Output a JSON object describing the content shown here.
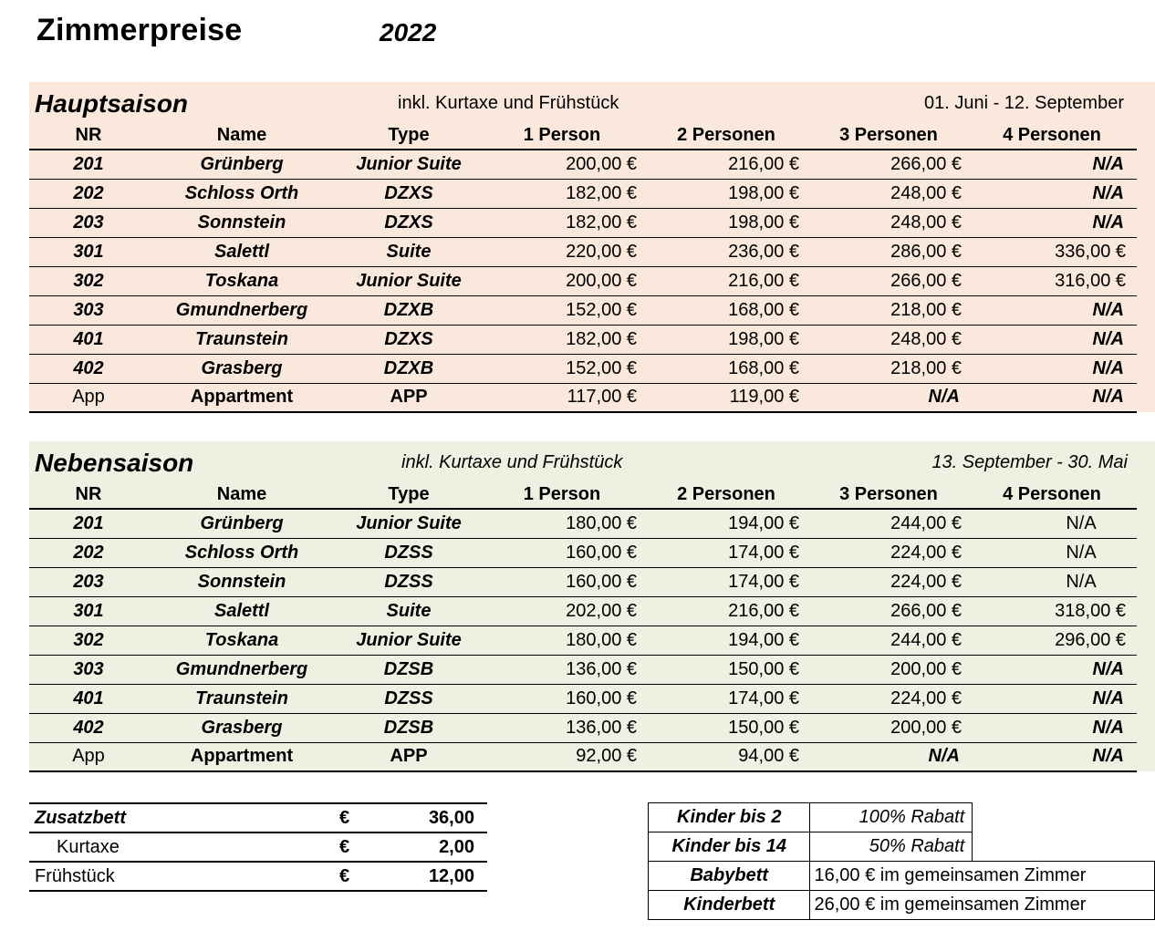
{
  "title": "Zimmerpreise",
  "year": "2022",
  "columns": [
    "NR",
    "Name",
    "Type",
    "1 Person",
    "2 Personen",
    "3 Personen",
    "4 Personen"
  ],
  "hauptsaison": {
    "name": "Hauptsaison",
    "note": "inkl. Kurtaxe und Frühstück",
    "dates": "01. Juni - 12. September",
    "bg_color": "#fbe8dc",
    "rows": [
      [
        "201",
        "Grünberg",
        "Junior Suite",
        "200,00 €",
        "216,00 €",
        "266,00 €",
        "N/A"
      ],
      [
        "202",
        "Schloss Orth",
        "DZXS",
        "182,00 €",
        "198,00 €",
        "248,00 €",
        "N/A"
      ],
      [
        "203",
        "Sonnstein",
        "DZXS",
        "182,00 €",
        "198,00 €",
        "248,00 €",
        "N/A"
      ],
      [
        "301",
        "Salettl",
        "Suite",
        "220,00 €",
        "236,00 €",
        "286,00 €",
        "336,00 €"
      ],
      [
        "302",
        "Toskana",
        "Junior Suite",
        "200,00 €",
        "216,00 €",
        "266,00 €",
        "316,00 €"
      ],
      [
        "303",
        "Gmundnerberg",
        "DZXB",
        "152,00 €",
        "168,00 €",
        "218,00 €",
        "N/A"
      ],
      [
        "401",
        "Traunstein",
        "DZXS",
        "182,00 €",
        "198,00 €",
        "248,00 €",
        "N/A"
      ],
      [
        "402",
        "Grasberg",
        "DZXB",
        "152,00 €",
        "168,00 €",
        "218,00 €",
        "N/A"
      ],
      [
        "App",
        "Appartment",
        "APP",
        "117,00 €",
        "119,00 €",
        "N/A",
        "N/A"
      ]
    ]
  },
  "nebensaison": {
    "name": "Nebensaison",
    "note": "inkl. Kurtaxe und Frühstück",
    "dates": "13. September - 30. Mai",
    "bg_color": "#edf1e2",
    "rows": [
      [
        "201",
        "Grünberg",
        "Junior Suite",
        "180,00 €",
        "194,00 €",
        "244,00 €",
        "N/A"
      ],
      [
        "202",
        "Schloss Orth",
        "DZSS",
        "160,00 €",
        "174,00 €",
        "224,00 €",
        "N/A"
      ],
      [
        "203",
        "Sonnstein",
        "DZSS",
        "160,00 €",
        "174,00 €",
        "224,00 €",
        "N/A"
      ],
      [
        "301",
        "Salettl",
        "Suite",
        "202,00 €",
        "216,00 €",
        "266,00 €",
        "318,00 €"
      ],
      [
        "302",
        "Toskana",
        "Junior Suite",
        "180,00 €",
        "194,00 €",
        "244,00 €",
        "296,00 €"
      ],
      [
        "303",
        "Gmundnerberg",
        "DZSB",
        "136,00 €",
        "150,00 €",
        "200,00 €",
        "N/A"
      ],
      [
        "401",
        "Traunstein",
        "DZSS",
        "160,00 €",
        "174,00 €",
        "224,00 €",
        "N/A"
      ],
      [
        "402",
        "Grasberg",
        "DZSB",
        "136,00 €",
        "150,00 €",
        "200,00 €",
        "N/A"
      ],
      [
        "App",
        "Appartment",
        "APP",
        "92,00 €",
        "94,00 €",
        "N/A",
        "N/A"
      ]
    ]
  },
  "extras": [
    {
      "label": "Zusatzbett",
      "currency": "€",
      "value": "36,00"
    },
    {
      "label": "Kurtaxe",
      "currency": "€",
      "value": "2,00"
    },
    {
      "label": "Frühstück",
      "currency": "€",
      "value": "12,00"
    }
  ],
  "kids": [
    {
      "label": "Kinder bis 2",
      "info": "100% Rabatt"
    },
    {
      "label": "Kinder bis 14",
      "info": "50% Rabatt"
    },
    {
      "label": "Babybett",
      "info": "16,00 € im gemeinsamen Zimmer"
    },
    {
      "label": "Kinderbett",
      "info": "26,00 € im gemeinsamen Zimmer"
    }
  ]
}
